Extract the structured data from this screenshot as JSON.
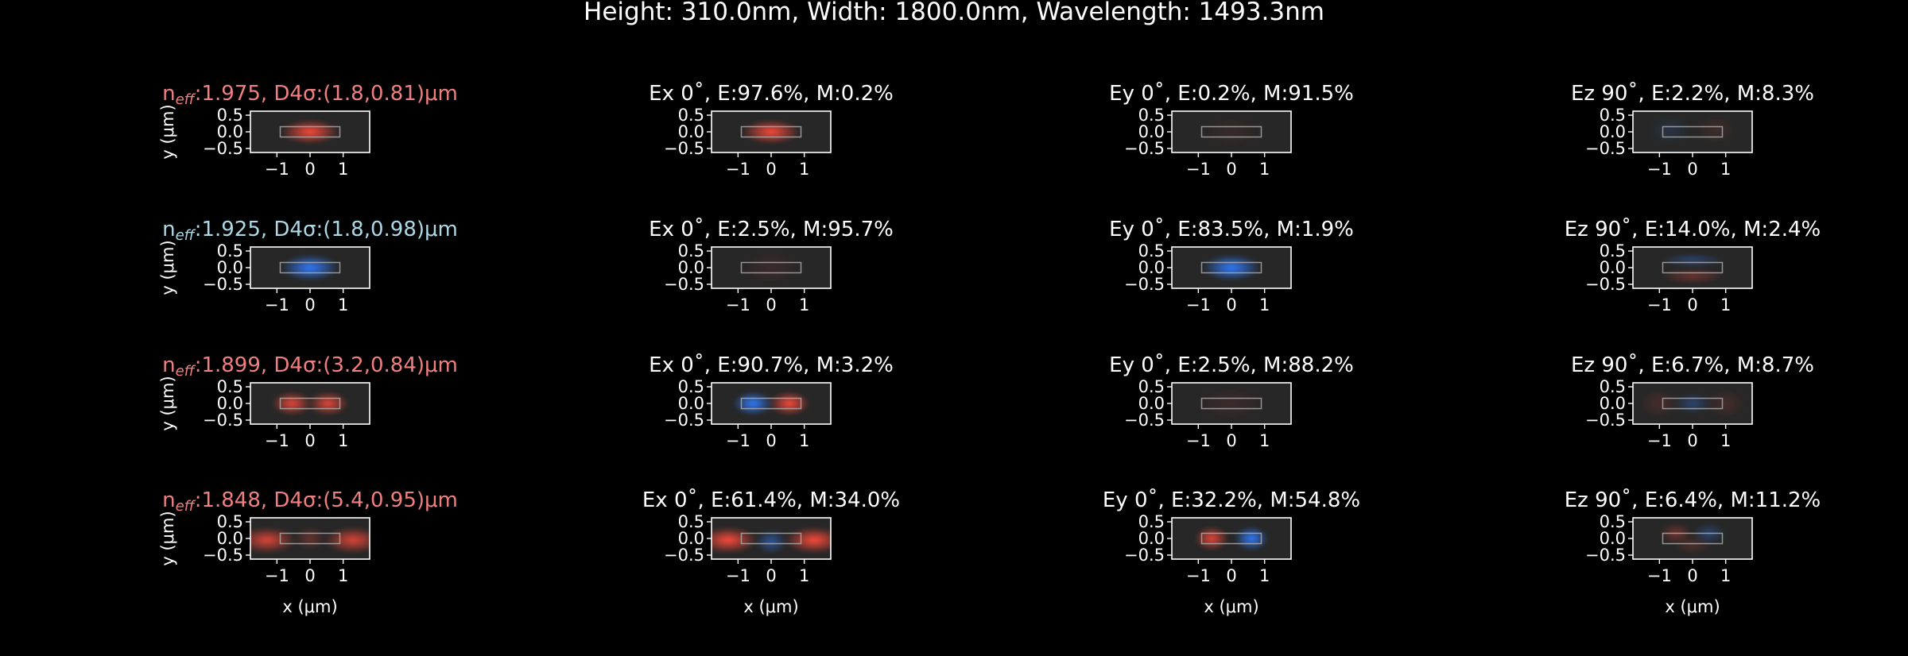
{
  "suptitle": "Height: 310.0nm, Width: 1800.0nm, Wavelength: 1493.3nm",
  "colors": {
    "background": "#000000",
    "text": "#ffffff",
    "te_title": "#f08080",
    "tm_title": "#add8e6",
    "positive_field": "#ff4a3a",
    "negative_field": "#2f7cff",
    "waveguide_outline": "#b0b0b0"
  },
  "axes_text": {
    "xlabel": "x (μm)",
    "ylabel": "y (μm)",
    "xticks": [
      "−1",
      "0",
      "1"
    ],
    "yticks": [
      "0.5",
      "0.0",
      "−0.5"
    ]
  },
  "chart_data": {
    "type": "heatmap",
    "xlim": [
      -1.8,
      1.8
    ],
    "ylim": [
      -0.62,
      0.62
    ],
    "xticks": [
      -1,
      0,
      1
    ],
    "yticks": [
      0.5,
      0.0,
      -0.5
    ],
    "waveguide": {
      "width_um": 1.8,
      "height_um": 0.31
    },
    "modes": [
      {
        "title_prefix": "n",
        "title_sub": "eff",
        "title_rest": ":1.975, D4σ:(1.8,0.81)μm",
        "title_color": "te",
        "neff": 1.975,
        "d4sigma_um": [
          1.8,
          0.81
        ],
        "panels": [
          {
            "title": "",
            "lobes": [
              {
                "x": 0,
                "y": 0,
                "sx": 0.55,
                "sy": 0.2,
                "amp": 1.0
              }
            ]
          },
          {
            "title": "Ex 0˚, E:97.6%, M:0.2%",
            "lobes": [
              {
                "x": 0,
                "y": 0,
                "sx": 0.55,
                "sy": 0.2,
                "amp": 1.0
              }
            ]
          },
          {
            "title": "Ey 0˚, E:0.2%, M:91.5%",
            "lobes": [
              {
                "x": 0,
                "y": 0,
                "sx": 0.6,
                "sy": 0.3,
                "amp": 0.08
              }
            ]
          },
          {
            "title": "Ez 90˚, E:2.2%, M:8.3%",
            "lobes": [
              {
                "x": -0.7,
                "y": 0.05,
                "sx": 0.4,
                "sy": 0.25,
                "amp": -0.15
              },
              {
                "x": 0.7,
                "y": 0.05,
                "sx": 0.4,
                "sy": 0.25,
                "amp": 0.12
              }
            ]
          }
        ]
      },
      {
        "title_prefix": "n",
        "title_sub": "eff",
        "title_rest": ":1.925, D4σ:(1.8,0.98)μm",
        "title_color": "tm",
        "neff": 1.925,
        "d4sigma_um": [
          1.8,
          0.98
        ],
        "panels": [
          {
            "title": "",
            "lobes": [
              {
                "x": 0,
                "y": 0,
                "sx": 0.55,
                "sy": 0.22,
                "amp": -1.0
              }
            ]
          },
          {
            "title": "Ex 0˚, E:2.5%, M:95.7%",
            "lobes": [
              {
                "x": 0,
                "y": 0,
                "sx": 0.6,
                "sy": 0.3,
                "amp": 0.1
              }
            ]
          },
          {
            "title": "Ey 0˚, E:83.5%, M:1.9%",
            "lobes": [
              {
                "x": 0,
                "y": 0,
                "sx": 0.55,
                "sy": 0.22,
                "amp": -1.0
              }
            ]
          },
          {
            "title": "Ez 90˚, E:14.0%, M:2.4%",
            "lobes": [
              {
                "x": 0,
                "y": 0.22,
                "sx": 0.6,
                "sy": 0.12,
                "amp": -0.35
              },
              {
                "x": 0,
                "y": -0.25,
                "sx": 0.6,
                "sy": 0.12,
                "amp": 0.35
              }
            ]
          }
        ]
      },
      {
        "title_prefix": "n",
        "title_sub": "eff",
        "title_rest": ":1.899, D4σ:(3.2,0.84)μm",
        "title_color": "te",
        "neff": 1.899,
        "d4sigma_um": [
          3.2,
          0.84
        ],
        "panels": [
          {
            "title": "",
            "lobes": [
              {
                "x": -0.55,
                "y": 0,
                "sx": 0.38,
                "sy": 0.2,
                "amp": 0.9
              },
              {
                "x": 0.55,
                "y": 0,
                "sx": 0.38,
                "sy": 0.2,
                "amp": 0.9
              }
            ]
          },
          {
            "title": "Ex 0˚, E:90.7%, M:3.2%",
            "lobes": [
              {
                "x": -0.55,
                "y": 0,
                "sx": 0.38,
                "sy": 0.2,
                "amp": -1.0
              },
              {
                "x": 0.55,
                "y": 0,
                "sx": 0.38,
                "sy": 0.2,
                "amp": 1.0
              }
            ]
          },
          {
            "title": "Ey 0˚, E:2.5%, M:88.2%",
            "lobes": [
              {
                "x": 0,
                "y": 0,
                "sx": 0.7,
                "sy": 0.3,
                "amp": 0.1
              }
            ]
          },
          {
            "title": "Ez 90˚, E:6.7%, M:8.7%",
            "lobes": [
              {
                "x": 0,
                "y": 0,
                "sx": 0.35,
                "sy": 0.18,
                "amp": -0.35
              },
              {
                "x": -1.0,
                "y": 0,
                "sx": 0.4,
                "sy": 0.25,
                "amp": 0.15
              },
              {
                "x": 1.0,
                "y": 0,
                "sx": 0.4,
                "sy": 0.25,
                "amp": 0.15
              }
            ]
          }
        ]
      },
      {
        "title_prefix": "n",
        "title_sub": "eff",
        "title_rest": ":1.848, D4σ:(5.4,0.95)μm",
        "title_color": "te",
        "neff": 1.848,
        "d4sigma_um": [
          5.4,
          0.95
        ],
        "panels": [
          {
            "title": "",
            "lobes": [
              {
                "x": -1.3,
                "y": -0.05,
                "sx": 0.55,
                "sy": 0.22,
                "amp": 0.85
              },
              {
                "x": 1.3,
                "y": -0.05,
                "sx": 0.55,
                "sy": 0.22,
                "amp": 0.85
              },
              {
                "x": 0,
                "y": 0,
                "sx": 0.3,
                "sy": 0.2,
                "amp": 0.3
              }
            ]
          },
          {
            "title": "Ex 0˚, E:61.4%, M:34.0%",
            "lobes": [
              {
                "x": -1.3,
                "y": -0.05,
                "sx": 0.55,
                "sy": 0.22,
                "amp": 1.0
              },
              {
                "x": 1.3,
                "y": -0.05,
                "sx": 0.55,
                "sy": 0.22,
                "amp": 1.0
              },
              {
                "x": 0,
                "y": -0.1,
                "sx": 0.3,
                "sy": 0.2,
                "amp": -0.55
              }
            ]
          },
          {
            "title": "Ey 0˚, E:32.2%, M:54.8%",
            "lobes": [
              {
                "x": -0.6,
                "y": 0,
                "sx": 0.32,
                "sy": 0.2,
                "amp": 0.9
              },
              {
                "x": 0.6,
                "y": 0,
                "sx": 0.32,
                "sy": 0.2,
                "amp": -1.0
              }
            ]
          },
          {
            "title": "Ez 90˚, E:6.4%, M:11.2%",
            "lobes": [
              {
                "x": -0.5,
                "y": 0.15,
                "sx": 0.3,
                "sy": 0.18,
                "amp": 0.35
              },
              {
                "x": 0.5,
                "y": 0.15,
                "sx": 0.3,
                "sy": 0.18,
                "amp": -0.35
              },
              {
                "x": 0,
                "y": -0.2,
                "sx": 0.35,
                "sy": 0.15,
                "amp": 0.2
              }
            ]
          }
        ]
      }
    ]
  }
}
